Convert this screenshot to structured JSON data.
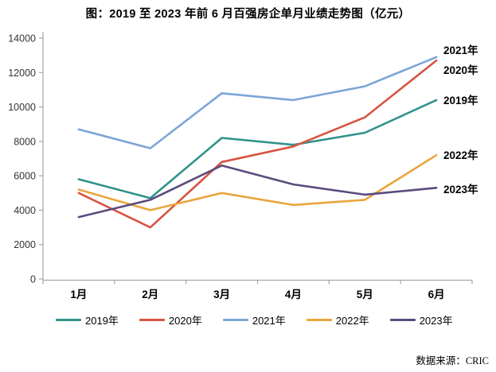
{
  "title": "图：2019 至 2023 年前 6 月百强房企单月业绩走势图（亿元）",
  "source": "数据来源：CRIC",
  "chart_data": {
    "type": "line",
    "title": "图：2019 至 2023 年前 6 月百强房企单月业绩走势图（亿元）",
    "xlabel": "",
    "ylabel": "",
    "categories": [
      "1月",
      "2月",
      "3月",
      "4月",
      "5月",
      "6月"
    ],
    "series": [
      {
        "name": "2019年",
        "color": "#2F9388",
        "values": [
          5800,
          4700,
          8200,
          7800,
          8500,
          10400
        ],
        "end_label_y": 126
      },
      {
        "name": "2020年",
        "color": "#D75442",
        "values": [
          5000,
          3000,
          6800,
          7700,
          9400,
          12700
        ],
        "end_label_y": 88
      },
      {
        "name": "2021年",
        "color": "#7CA5D8",
        "values": [
          8700,
          7600,
          10800,
          10400,
          11200,
          12900
        ],
        "end_label_y": 63
      },
      {
        "name": "2022年",
        "color": "#EBA53C",
        "values": [
          5200,
          4000,
          5000,
          4300,
          4600,
          7200
        ],
        "end_label_y": 195
      },
      {
        "name": "2023年",
        "color": "#5A4B7D",
        "values": [
          3600,
          4600,
          6600,
          5500,
          4900,
          5300
        ],
        "end_label_y": 238
      }
    ],
    "ylim": [
      0,
      14000
    ],
    "yticks": [
      0,
      2000,
      4000,
      6000,
      8000,
      10000,
      12000,
      14000
    ],
    "grid": false,
    "legend_position": "bottom",
    "end_labels": true,
    "axis_color": "#A6A6A6",
    "tick_label_color": "#333333"
  }
}
